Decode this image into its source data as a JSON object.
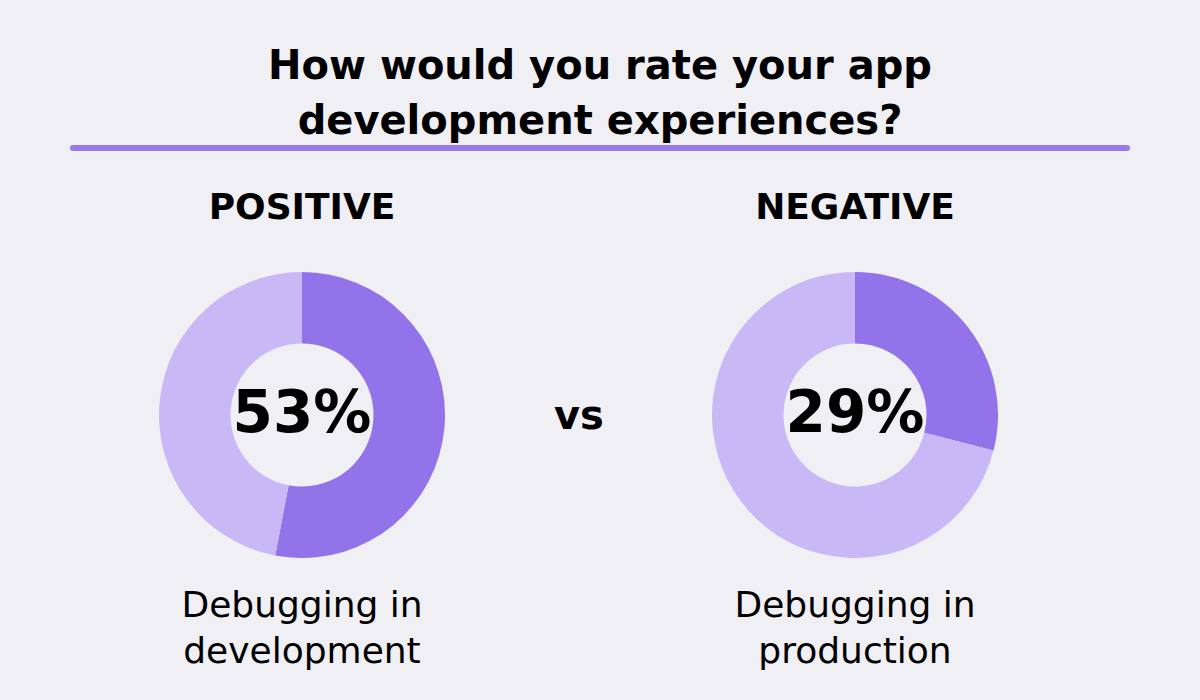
{
  "title": "How would you rate your app development experiences?",
  "separator": "vs",
  "chart_data": [
    {
      "type": "doughnut",
      "title": "POSITIVE",
      "caption": "Debugging in development",
      "values": [
        53,
        47
      ],
      "value_labels": [
        "53%",
        null
      ],
      "colors": [
        "#9373ea",
        "#c8b9f6"
      ],
      "data_labels": true
    },
    {
      "type": "doughnut",
      "title": "NEGATIVE",
      "caption": "Debugging in production",
      "values": [
        29,
        71
      ],
      "value_labels": [
        "29%",
        null
      ],
      "colors": [
        "#9373ea",
        "#c8b9f6"
      ],
      "data_labels": true
    }
  ]
}
